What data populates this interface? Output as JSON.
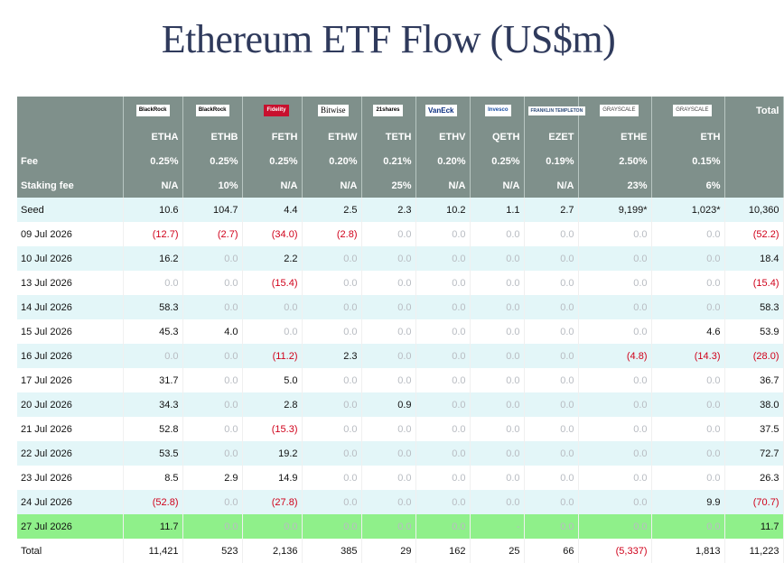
{
  "title": "Ethereum ETF Flow (US$m)",
  "columns": [
    {
      "ticker": "ETHA",
      "logo": "BlackRock",
      "logo_style": "br"
    },
    {
      "ticker": "ETHB",
      "logo": "BlackRock",
      "logo_style": "br"
    },
    {
      "ticker": "FETH",
      "logo": "Fidelity",
      "logo_style": "fid"
    },
    {
      "ticker": "ETHW",
      "logo": "Bitwise",
      "logo_style": "bw"
    },
    {
      "ticker": "TETH",
      "logo": "21shares",
      "logo_style": "br"
    },
    {
      "ticker": "ETHV",
      "logo": "VanEck",
      "logo_style": "vn"
    },
    {
      "ticker": "QETH",
      "logo": "Invesco",
      "logo_style": "inv"
    },
    {
      "ticker": "EZET",
      "logo": "FRANKLIN TEMPLETON",
      "logo_style": "ft"
    },
    {
      "ticker": "ETHE",
      "logo": "GRAYSCALE",
      "logo_style": "gs"
    },
    {
      "ticker": "ETH",
      "logo": "GRAYSCALE",
      "logo_style": "gs"
    }
  ],
  "total_header": "Total",
  "fee_row": {
    "label": "Fee",
    "values": [
      "0.25%",
      "0.25%",
      "0.25%",
      "0.20%",
      "0.21%",
      "0.20%",
      "0.25%",
      "0.19%",
      "2.50%",
      "0.15%"
    ],
    "total": ""
  },
  "staking_row": {
    "label": "Staking fee",
    "values": [
      "N/A",
      "10%",
      "N/A",
      "N/A",
      "25%",
      "N/A",
      "N/A",
      "N/A",
      "23%",
      "6%"
    ],
    "total": ""
  },
  "rows": [
    {
      "date": "Seed",
      "values": [
        "10.6",
        "104.7",
        "4.4",
        "2.5",
        "2.3",
        "10.2",
        "1.1",
        "2.7",
        "9,199*",
        "1,023*"
      ],
      "total": "10,360",
      "style": "alt"
    },
    {
      "date": "09 Jul 2026",
      "values": [
        "(12.7)",
        "(2.7)",
        "(34.0)",
        "(2.8)",
        "0.0",
        "0.0",
        "0.0",
        "0.0",
        "0.0",
        "0.0"
      ],
      "total": "(52.2)",
      "style": ""
    },
    {
      "date": "10 Jul 2026",
      "values": [
        "16.2",
        "0.0",
        "2.2",
        "0.0",
        "0.0",
        "0.0",
        "0.0",
        "0.0",
        "0.0",
        "0.0"
      ],
      "total": "18.4",
      "style": "alt"
    },
    {
      "date": "13 Jul 2026",
      "values": [
        "0.0",
        "0.0",
        "(15.4)",
        "0.0",
        "0.0",
        "0.0",
        "0.0",
        "0.0",
        "0.0",
        "0.0"
      ],
      "total": "(15.4)",
      "style": ""
    },
    {
      "date": "14 Jul 2026",
      "values": [
        "58.3",
        "0.0",
        "0.0",
        "0.0",
        "0.0",
        "0.0",
        "0.0",
        "0.0",
        "0.0",
        "0.0"
      ],
      "total": "58.3",
      "style": "alt"
    },
    {
      "date": "15 Jul 2026",
      "values": [
        "45.3",
        "4.0",
        "0.0",
        "0.0",
        "0.0",
        "0.0",
        "0.0",
        "0.0",
        "0.0",
        "4.6"
      ],
      "total": "53.9",
      "style": ""
    },
    {
      "date": "16 Jul 2026",
      "values": [
        "0.0",
        "0.0",
        "(11.2)",
        "2.3",
        "0.0",
        "0.0",
        "0.0",
        "0.0",
        "(4.8)",
        "(14.3)"
      ],
      "total": "(28.0)",
      "style": "alt"
    },
    {
      "date": "17 Jul 2026",
      "values": [
        "31.7",
        "0.0",
        "5.0",
        "0.0",
        "0.0",
        "0.0",
        "0.0",
        "0.0",
        "0.0",
        "0.0"
      ],
      "total": "36.7",
      "style": ""
    },
    {
      "date": "20 Jul 2026",
      "values": [
        "34.3",
        "0.0",
        "2.8",
        "0.0",
        "0.9",
        "0.0",
        "0.0",
        "0.0",
        "0.0",
        "0.0"
      ],
      "total": "38.0",
      "style": "alt"
    },
    {
      "date": "21 Jul 2026",
      "values": [
        "52.8",
        "0.0",
        "(15.3)",
        "0.0",
        "0.0",
        "0.0",
        "0.0",
        "0.0",
        "0.0",
        "0.0"
      ],
      "total": "37.5",
      "style": ""
    },
    {
      "date": "22 Jul 2026",
      "values": [
        "53.5",
        "0.0",
        "19.2",
        "0.0",
        "0.0",
        "0.0",
        "0.0",
        "0.0",
        "0.0",
        "0.0"
      ],
      "total": "72.7",
      "style": "alt"
    },
    {
      "date": "23 Jul 2026",
      "values": [
        "8.5",
        "2.9",
        "14.9",
        "0.0",
        "0.0",
        "0.0",
        "0.0",
        "0.0",
        "0.0",
        "0.0"
      ],
      "total": "26.3",
      "style": ""
    },
    {
      "date": "24 Jul 2026",
      "values": [
        "(52.8)",
        "0.0",
        "(27.8)",
        "0.0",
        "0.0",
        "0.0",
        "0.0",
        "0.0",
        "0.0",
        "9.9"
      ],
      "total": "(70.7)",
      "style": "alt"
    },
    {
      "date": "27 Jul 2026",
      "values": [
        "11.7",
        "0.0",
        "0.0",
        "0.0",
        "0.0",
        "0.0",
        "-",
        "0.0",
        "0.0",
        "0.0"
      ],
      "total": "11.7",
      "style": "hl"
    },
    {
      "date": "Total",
      "values": [
        "11,421",
        "523",
        "2,136",
        "385",
        "29",
        "162",
        "25",
        "66",
        "(5,337)",
        "1,813"
      ],
      "total": "11,223",
      "style": "total"
    }
  ],
  "colors": {
    "header_bg": "#7f908b",
    "alt_row": "#e3f6f8",
    "highlight_row": "#8ff08a",
    "negative": "#d0021b",
    "zero": "#b8bcc2",
    "title": "#2f3a5c"
  }
}
